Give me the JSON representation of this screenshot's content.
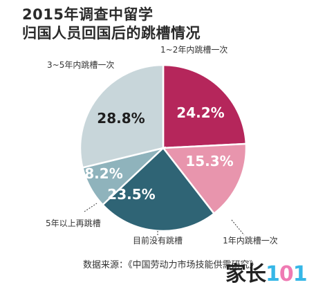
{
  "title": {
    "line1": "2015年调查中留学",
    "line2": "归国人员回国后的跳槽情况"
  },
  "source": "数据来源：《中国劳动力市场技能供需研究》",
  "logo": {
    "part1": "家长",
    "part2": "1",
    "part3": "0",
    "part4": "1"
  },
  "chart_data": {
    "type": "pie",
    "start_angle_deg": 0,
    "direction": "clockwise",
    "slices": [
      {
        "label": "1~2年内跳槽一次",
        "value": 24.2,
        "value_text": "24.2%",
        "color": "#b5265b",
        "text_color": "#ffffff"
      },
      {
        "label": "1年内跳槽一次",
        "value": 15.3,
        "value_text": "15.3%",
        "color": "#e895ad",
        "text_color": "#ffffff"
      },
      {
        "label": "目前没有跳槽",
        "value": 23.5,
        "value_text": "23.5%",
        "color": "#2f6475",
        "text_color": "#ffffff"
      },
      {
        "label": "5年以上再跳槽",
        "value": 8.2,
        "value_text": "8.2%",
        "color": "#8fb3bc",
        "text_color": "#ffffff"
      },
      {
        "label": "3~5年内跳槽一次",
        "value": 28.8,
        "value_text": "28.8%",
        "color": "#c8d6da",
        "text_color": "#1e1e1e"
      }
    ]
  }
}
